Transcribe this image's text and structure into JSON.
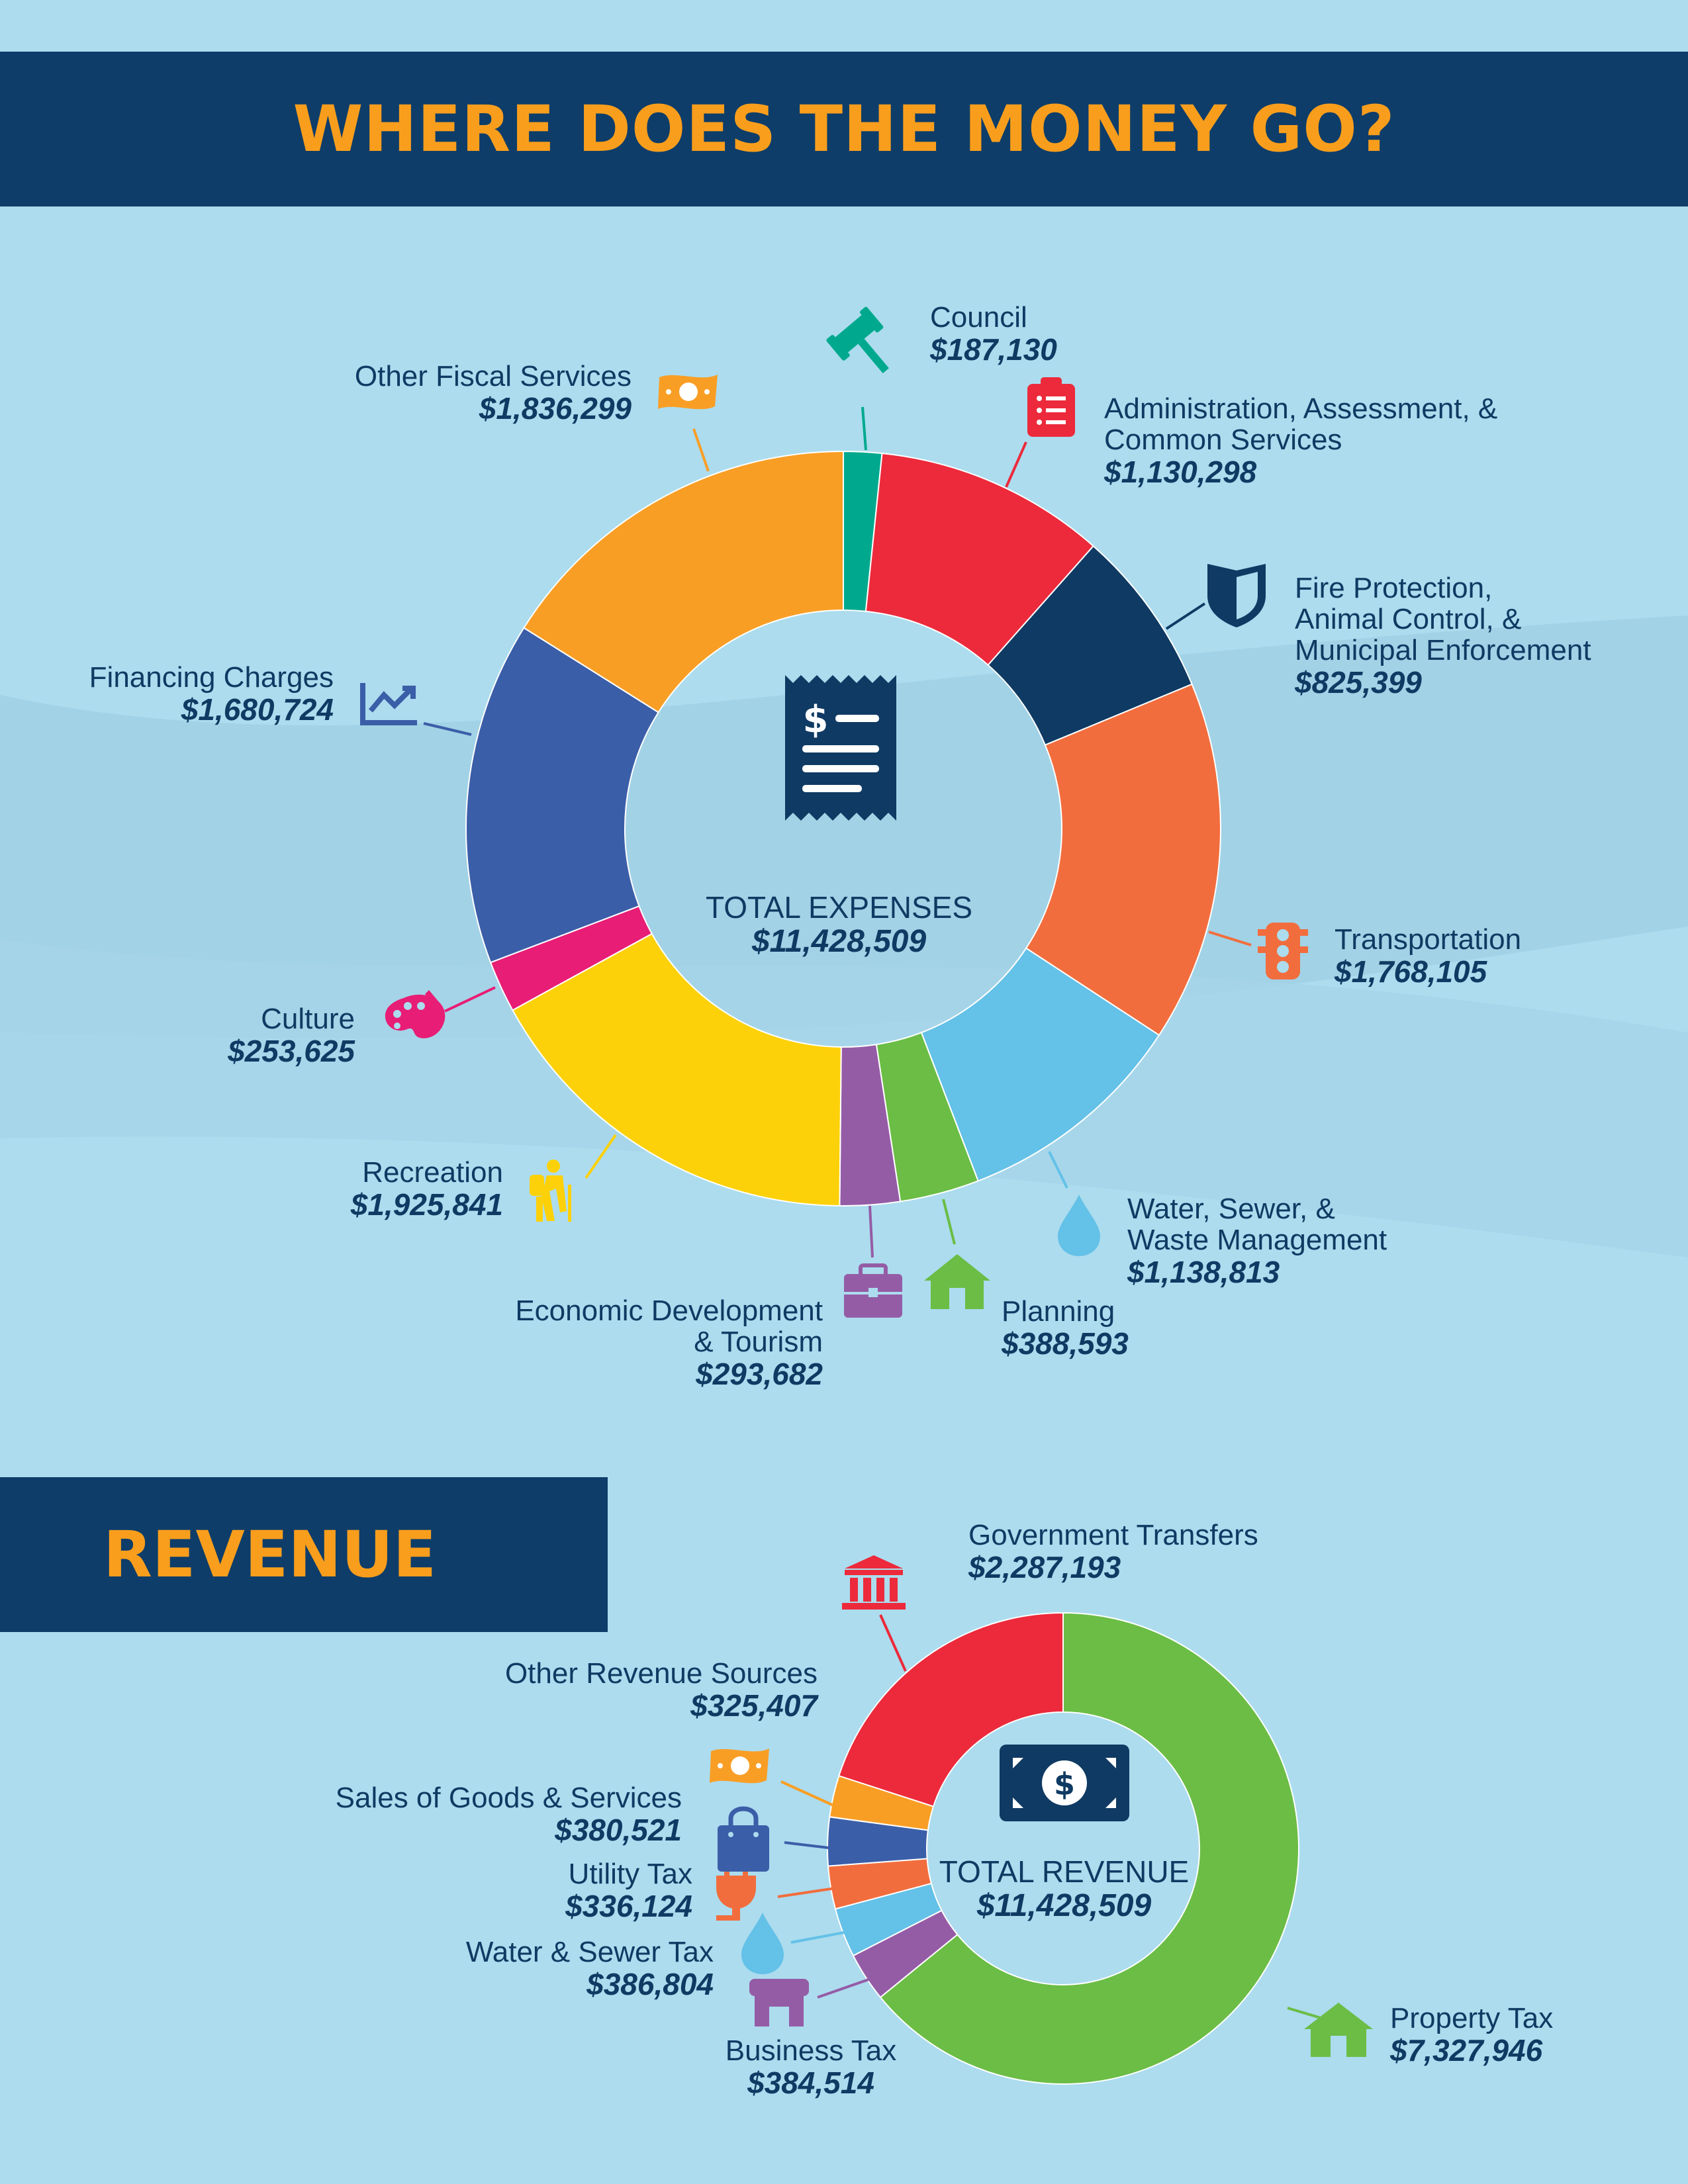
{
  "header": {
    "title": "WHERE DOES THE MONEY GO?"
  },
  "revenue_header": {
    "title": "REVENUE"
  },
  "colors": {
    "banner": "#0e3d69",
    "accent": "#f99e1c",
    "background": "#acdcee"
  },
  "chart_data": [
    {
      "type": "donut",
      "center_label": "TOTAL EXPENSES",
      "center_value": "$11,428,509",
      "center_icon": "receipt-icon",
      "slices": [
        {
          "id": "council",
          "name": "Council",
          "value": 187130,
          "value_label": "$187,130",
          "color": "#00a98e",
          "icon": "gavel-icon"
        },
        {
          "id": "admin",
          "name": "Administration, Assessment, &\nCommon Services",
          "value": 1130298,
          "value_label": "$1,130,298",
          "color": "#ec2a3b",
          "icon": "clipboard-icon"
        },
        {
          "id": "fire",
          "name": "Fire Protection,\nAnimal Control, &\nMunicipal Enforcement",
          "value": 825399,
          "value_label": "$825,399",
          "color": "#0f3a63",
          "icon": "shield-icon"
        },
        {
          "id": "transport",
          "name": "Transportation",
          "value": 1768105,
          "value_label": "$1,768,105",
          "color": "#f26d3d",
          "icon": "traffic-light-icon"
        },
        {
          "id": "water",
          "name": "Water, Sewer, &\nWaste Management",
          "value": 1138813,
          "value_label": "$1,138,813",
          "color": "#64c1e8",
          "icon": "water-drop-icon"
        },
        {
          "id": "planning",
          "name": "Planning",
          "value": 388593,
          "value_label": "$388,593",
          "color": "#6bbd45",
          "icon": "house-icon"
        },
        {
          "id": "econ",
          "name": "Economic Development\n& Tourism",
          "value": 293682,
          "value_label": "$293,682",
          "color": "#955ca6",
          "icon": "briefcase-icon"
        },
        {
          "id": "recreation",
          "name": "Recreation",
          "value": 1925841,
          "value_label": "$1,925,841",
          "color": "#fdd10a",
          "icon": "hiker-icon"
        },
        {
          "id": "culture",
          "name": "Culture",
          "value": 253625,
          "value_label": "$253,625",
          "color": "#e81d75",
          "icon": "palette-icon"
        },
        {
          "id": "financing",
          "name": "Financing Charges",
          "value": 1680724,
          "value_label": "$1,680,724",
          "color": "#3b5ea8",
          "icon": "chart-trend-icon"
        },
        {
          "id": "fiscal",
          "name": "Other Fiscal Services",
          "value": 1836299,
          "value_label": "$1,836,299",
          "color": "#f99e25",
          "icon": "money-bill-icon"
        }
      ]
    },
    {
      "type": "donut",
      "center_label": "TOTAL REVENUE",
      "center_value": "$11,428,509",
      "center_icon": "cash-icon",
      "slices": [
        {
          "id": "property",
          "name": "Property Tax",
          "value": 7327946,
          "value_label": "$7,327,946",
          "color": "#6bbd45",
          "icon": "house-icon"
        },
        {
          "id": "business",
          "name": "Business Tax",
          "value": 384514,
          "value_label": "$384,514",
          "color": "#955ca6",
          "icon": "storefront-icon"
        },
        {
          "id": "watertax",
          "name": "Water & Sewer Tax",
          "value": 386804,
          "value_label": "$386,804",
          "color": "#64c1e8",
          "icon": "water-drop-icon"
        },
        {
          "id": "utility",
          "name": "Utility Tax",
          "value": 336124,
          "value_label": "$336,124",
          "color": "#f26d3d",
          "icon": "plug-icon"
        },
        {
          "id": "sales",
          "name": "Sales of Goods & Services",
          "value": 380521,
          "value_label": "$380,521",
          "color": "#3b5ea8",
          "icon": "shopping-bag-icon"
        },
        {
          "id": "otherrev",
          "name": "Other Revenue Sources",
          "value": 325407,
          "value_label": "$325,407",
          "color": "#f99e25",
          "icon": "money-bill-icon"
        },
        {
          "id": "govt",
          "name": "Government Transfers",
          "value": 2287193,
          "value_label": "$2,287,193",
          "color": "#ec2a3b",
          "icon": "bank-icon"
        }
      ]
    }
  ]
}
